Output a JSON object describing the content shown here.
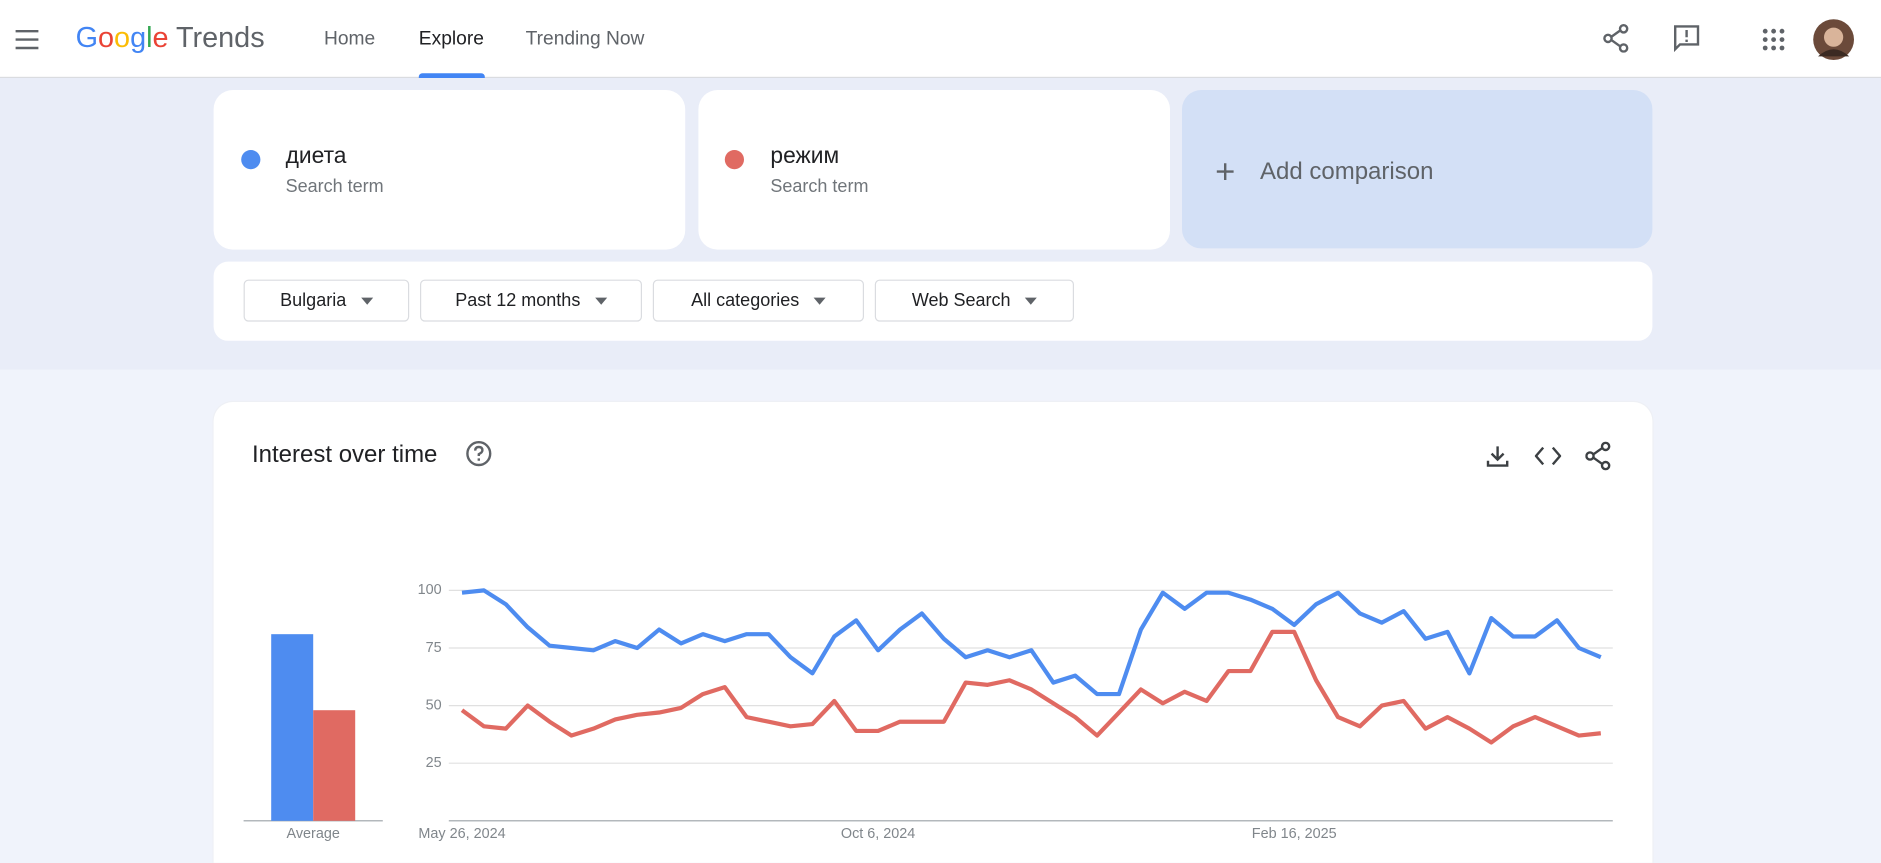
{
  "header": {
    "logo": {
      "brand": "Google",
      "product": "Trends"
    },
    "nav": [
      "Home",
      "Explore",
      "Trending Now"
    ]
  },
  "search_terms": [
    {
      "subtitle": "Search term"
    },
    {
      "subtitle": "Search term"
    }
  ],
  "add_comparison": "Add comparison",
  "filters": [
    "Bulgaria",
    "Past 12 months",
    "All categories",
    "Web Search"
  ],
  "chart_data": [
    {
      "type": "bar",
      "categories": [
        "Average"
      ],
      "series": [
        {
          "color": "#4e8cf0",
          "values": [
            81
          ]
        },
        {
          "color": "#e06a62",
          "values": [
            48
          ]
        }
      ],
      "ylim": [
        0,
        100
      ]
    },
    {
      "type": "line",
      "title": "Interest over time",
      "categories": [
        "May 26, 2024",
        null,
        null,
        null,
        null,
        null,
        null,
        null,
        null,
        null,
        null,
        null,
        null,
        null,
        null,
        null,
        null,
        null,
        null,
        "Oct 6, 2024",
        null,
        null,
        null,
        null,
        null,
        null,
        null,
        null,
        null,
        null,
        null,
        null,
        null,
        null,
        null,
        null,
        null,
        null,
        "Feb 16, 2025",
        null,
        null,
        null,
        null,
        null,
        null,
        null,
        null,
        null,
        null,
        null,
        null,
        null,
        null
      ],
      "series": [
        {
          "name": "диета",
          "color": "#4e8cf0",
          "values": [
            99,
            100,
            94,
            84,
            76,
            75,
            74,
            78,
            75,
            83,
            77,
            81,
            78,
            81,
            81,
            71,
            64,
            80,
            87,
            74,
            83,
            90,
            79,
            71,
            74,
            71,
            74,
            60,
            63,
            55,
            55,
            83,
            99,
            92,
            99,
            99,
            96,
            92,
            85,
            94,
            99,
            90,
            86,
            91,
            79,
            82,
            64,
            88,
            80,
            80,
            87,
            75,
            71
          ]
        },
        {
          "name": "режим",
          "color": "#e06a62",
          "values": [
            48,
            41,
            40,
            50,
            43,
            37,
            40,
            44,
            46,
            47,
            49,
            55,
            58,
            45,
            43,
            41,
            42,
            52,
            39,
            39,
            43,
            43,
            43,
            60,
            59,
            61,
            57,
            51,
            45,
            37,
            47,
            57,
            51,
            56,
            52,
            65,
            65,
            82,
            82,
            61,
            45,
            41,
            50,
            52,
            40,
            45,
            40,
            34,
            41,
            45,
            41,
            37,
            38
          ]
        }
      ],
      "ylim": [
        0,
        100
      ],
      "yticks": [
        25,
        50,
        75,
        100
      ],
      "grid": true
    }
  ]
}
